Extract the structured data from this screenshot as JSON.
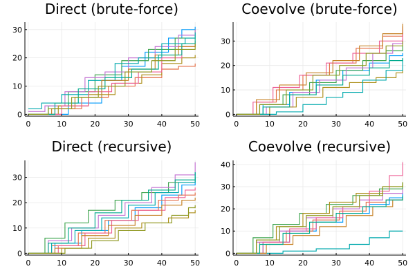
{
  "chart_data": [
    {
      "type": "line",
      "title": "Direct (brute-force)",
      "xlabel": "",
      "ylabel": "",
      "xlim": [
        0,
        50
      ],
      "ylim": [
        0,
        32
      ],
      "xticks": [
        0,
        10,
        20,
        30,
        40,
        50
      ],
      "yticks": [
        0,
        10,
        20,
        30
      ],
      "grid": true,
      "legend": "none",
      "step": true,
      "series": [
        {
          "color": "#009AFA",
          "x": [
            0,
            12,
            22,
            28,
            35,
            42,
            46,
            50
          ],
          "y": [
            0,
            4,
            12,
            17,
            22,
            27,
            30,
            31
          ]
        },
        {
          "color": "#E36F47",
          "x": [
            0,
            8,
            16,
            24,
            32,
            40,
            45,
            50
          ],
          "y": [
            0,
            2,
            6,
            10,
            13,
            16,
            17,
            18
          ]
        },
        {
          "color": "#3EA44E",
          "x": [
            0,
            6,
            12,
            20,
            28,
            36,
            44,
            50
          ],
          "y": [
            0,
            3,
            8,
            14,
            19,
            23,
            27,
            30
          ]
        },
        {
          "color": "#C371D2",
          "x": [
            0,
            5,
            11,
            17,
            23,
            30,
            38,
            45,
            50
          ],
          "y": [
            1,
            3,
            8,
            13,
            15,
            20,
            24,
            28,
            30
          ]
        },
        {
          "color": "#AC8E18",
          "x": [
            0,
            9,
            18,
            26,
            34,
            40,
            46,
            50
          ],
          "y": [
            0,
            3,
            7,
            11,
            14,
            18,
            20,
            21
          ]
        },
        {
          "color": "#00A9AD",
          "x": [
            0,
            4,
            10,
            18,
            26,
            33,
            40,
            47,
            50
          ],
          "y": [
            2,
            4,
            7,
            12,
            18,
            20,
            25,
            27,
            29
          ]
        },
        {
          "color": "#ED5E93",
          "x": [
            0,
            10,
            18,
            25,
            33,
            40,
            46,
            50
          ],
          "y": [
            0,
            3,
            8,
            11,
            15,
            20,
            24,
            25
          ]
        },
        {
          "color": "#C68125",
          "x": [
            0,
            7,
            14,
            22,
            30,
            38,
            45,
            50
          ],
          "y": [
            0,
            2,
            6,
            12,
            16,
            21,
            24,
            26
          ]
        },
        {
          "color": "#00A98D",
          "x": [
            0,
            8,
            15,
            23,
            31,
            39,
            46,
            50
          ],
          "y": [
            0,
            4,
            9,
            13,
            16,
            21,
            25,
            27
          ]
        },
        {
          "color": "#8E971E",
          "x": [
            0,
            6,
            13,
            21,
            29,
            37,
            44,
            50
          ],
          "y": [
            0,
            2,
            6,
            10,
            15,
            19,
            23,
            25
          ]
        }
      ]
    },
    {
      "type": "line",
      "title": "Coevolve (brute-force)",
      "xlabel": "",
      "ylabel": "",
      "xlim": [
        0,
        50
      ],
      "ylim": [
        0,
        37
      ],
      "xticks": [
        0,
        10,
        20,
        30,
        40,
        50
      ],
      "yticks": [
        0,
        10,
        20,
        30
      ],
      "grid": true,
      "legend": "none",
      "step": true,
      "series": [
        {
          "color": "#009AFA",
          "x": [
            0,
            8,
            16,
            24,
            32,
            40,
            46,
            50
          ],
          "y": [
            0,
            4,
            9,
            14,
            18,
            21,
            24,
            25
          ]
        },
        {
          "color": "#E36F47",
          "x": [
            0,
            6,
            12,
            20,
            28,
            36,
            44,
            50
          ],
          "y": [
            0,
            5,
            10,
            16,
            21,
            27,
            32,
            36
          ]
        },
        {
          "color": "#3EA44E",
          "x": [
            0,
            7,
            14,
            22,
            30,
            38,
            45,
            50
          ],
          "y": [
            0,
            4,
            8,
            13,
            18,
            22,
            26,
            28
          ]
        },
        {
          "color": "#C371D2",
          "x": [
            0,
            9,
            17,
            25,
            33,
            41,
            47,
            50
          ],
          "y": [
            0,
            3,
            9,
            14,
            19,
            25,
            29,
            31
          ]
        },
        {
          "color": "#AC8E18",
          "x": [
            0,
            10,
            18,
            26,
            34,
            42,
            48,
            50
          ],
          "y": [
            0,
            3,
            7,
            11,
            13,
            15,
            17,
            18
          ]
        },
        {
          "color": "#00A9AD",
          "x": [
            0,
            12,
            20,
            27,
            32,
            38,
            45,
            50
          ],
          "y": [
            0,
            1,
            4,
            7,
            9,
            14,
            18,
            23
          ]
        },
        {
          "color": "#ED5E93",
          "x": [
            0,
            5,
            11,
            19,
            27,
            35,
            43,
            50
          ],
          "y": [
            0,
            5,
            11,
            16,
            21,
            25,
            30,
            35
          ]
        },
        {
          "color": "#C68125",
          "x": [
            0,
            6,
            13,
            21,
            29,
            37,
            44,
            50
          ],
          "y": [
            0,
            6,
            12,
            17,
            22,
            28,
            33,
            37
          ]
        },
        {
          "color": "#00A98D",
          "x": [
            0,
            8,
            16,
            24,
            32,
            40,
            46,
            50
          ],
          "y": [
            0,
            3,
            8,
            12,
            16,
            19,
            22,
            23
          ]
        },
        {
          "color": "#8E971E",
          "x": [
            0,
            7,
            15,
            23,
            31,
            39,
            45,
            50
          ],
          "y": [
            0,
            4,
            10,
            16,
            20,
            25,
            28,
            30
          ]
        }
      ]
    },
    {
      "type": "line",
      "title": "Direct (recursive)",
      "xlabel": "",
      "ylabel": "",
      "xlim": [
        0,
        50
      ],
      "ylim": [
        0,
        36
      ],
      "xticks": [
        0,
        10,
        20,
        30,
        40,
        50
      ],
      "yticks": [
        0,
        10,
        20,
        30
      ],
      "grid": true,
      "legend": "none",
      "step": true,
      "series": [
        {
          "color": "#009AFA",
          "x": [
            0,
            8,
            16,
            24,
            32,
            40,
            46,
            50
          ],
          "y": [
            0,
            4,
            9,
            13,
            18,
            23,
            27,
            30
          ]
        },
        {
          "color": "#E36F47",
          "x": [
            0,
            7,
            15,
            23,
            31,
            39,
            45,
            50
          ],
          "y": [
            0,
            3,
            8,
            13,
            17,
            21,
            23,
            24
          ]
        },
        {
          "color": "#3EA44E",
          "x": [
            0,
            5,
            11,
            18,
            26,
            34,
            42,
            50
          ],
          "y": [
            0,
            6,
            12,
            17,
            21,
            24,
            28,
            30
          ]
        },
        {
          "color": "#C371D2",
          "x": [
            0,
            6,
            13,
            21,
            29,
            37,
            44,
            50
          ],
          "y": [
            0,
            5,
            10,
            15,
            20,
            26,
            31,
            36
          ]
        },
        {
          "color": "#AC8E18",
          "x": [
            0,
            10,
            18,
            26,
            34,
            42,
            48,
            50
          ],
          "y": [
            0,
            2,
            6,
            10,
            12,
            14,
            16,
            17
          ]
        },
        {
          "color": "#00A9AD",
          "x": [
            0,
            7,
            14,
            22,
            30,
            38,
            45,
            50
          ],
          "y": [
            0,
            4,
            9,
            14,
            19,
            24,
            28,
            32
          ]
        },
        {
          "color": "#ED5E93",
          "x": [
            0,
            9,
            17,
            25,
            33,
            41,
            47,
            50
          ],
          "y": [
            0,
            3,
            8,
            13,
            17,
            22,
            25,
            26
          ]
        },
        {
          "color": "#C68125",
          "x": [
            0,
            8,
            16,
            24,
            32,
            40,
            46,
            50
          ],
          "y": [
            0,
            2,
            7,
            11,
            15,
            19,
            21,
            22
          ]
        },
        {
          "color": "#00A98D",
          "x": [
            0,
            6,
            12,
            20,
            28,
            36,
            44,
            50
          ],
          "y": [
            0,
            4,
            10,
            16,
            21,
            25,
            29,
            32
          ]
        },
        {
          "color": "#8E971E",
          "x": [
            0,
            11,
            19,
            27,
            35,
            43,
            48,
            50
          ],
          "y": [
            0,
            2,
            5,
            9,
            12,
            15,
            18,
            19
          ]
        }
      ]
    },
    {
      "type": "line",
      "title": "Coevolve (recursive)",
      "xlabel": "",
      "ylabel": "",
      "xlim": [
        0,
        50
      ],
      "ylim": [
        0,
        41
      ],
      "xticks": [
        0,
        10,
        20,
        30,
        40,
        50
      ],
      "yticks": [
        0,
        10,
        20,
        30,
        40
      ],
      "grid": true,
      "legend": "none",
      "step": true,
      "series": [
        {
          "color": "#009AFA",
          "x": [
            0,
            8,
            16,
            24,
            32,
            40,
            46,
            50
          ],
          "y": [
            0,
            5,
            10,
            14,
            18,
            22,
            25,
            27
          ]
        },
        {
          "color": "#E36F47",
          "x": [
            0,
            7,
            15,
            23,
            31,
            39,
            45,
            50
          ],
          "y": [
            0,
            5,
            10,
            15,
            19,
            23,
            24,
            24
          ]
        },
        {
          "color": "#3EA44E",
          "x": [
            0,
            5,
            11,
            19,
            27,
            35,
            43,
            50
          ],
          "y": [
            0,
            7,
            13,
            18,
            22,
            26,
            29,
            32
          ]
        },
        {
          "color": "#C371D2",
          "x": [
            0,
            6,
            13,
            21,
            29,
            37,
            44,
            50
          ],
          "y": [
            0,
            5,
            10,
            16,
            20,
            24,
            27,
            29
          ]
        },
        {
          "color": "#AC8E18",
          "x": [
            0,
            6,
            12,
            20,
            28,
            36,
            44,
            50
          ],
          "y": [
            0,
            6,
            12,
            18,
            23,
            27,
            30,
            31
          ]
        },
        {
          "color": "#00A9AD",
          "x": [
            0,
            14,
            24,
            34,
            40,
            46,
            50
          ],
          "y": [
            0,
            1,
            2,
            4,
            7,
            10,
            10
          ]
        },
        {
          "color": "#ED5E93",
          "x": [
            0,
            8,
            16,
            24,
            32,
            40,
            46,
            50
          ],
          "y": [
            0,
            5,
            11,
            16,
            21,
            28,
            35,
            41
          ]
        },
        {
          "color": "#C68125",
          "x": [
            0,
            9,
            17,
            25,
            33,
            41,
            47,
            50
          ],
          "y": [
            0,
            4,
            8,
            12,
            17,
            21,
            24,
            25
          ]
        },
        {
          "color": "#00A98D",
          "x": [
            0,
            7,
            14,
            22,
            30,
            38,
            45,
            50
          ],
          "y": [
            0,
            4,
            9,
            14,
            18,
            21,
            24,
            26
          ]
        },
        {
          "color": "#8E971E",
          "x": [
            0,
            6,
            13,
            21,
            29,
            37,
            44,
            50
          ],
          "y": [
            0,
            6,
            12,
            17,
            21,
            26,
            30,
            32
          ]
        }
      ]
    }
  ]
}
